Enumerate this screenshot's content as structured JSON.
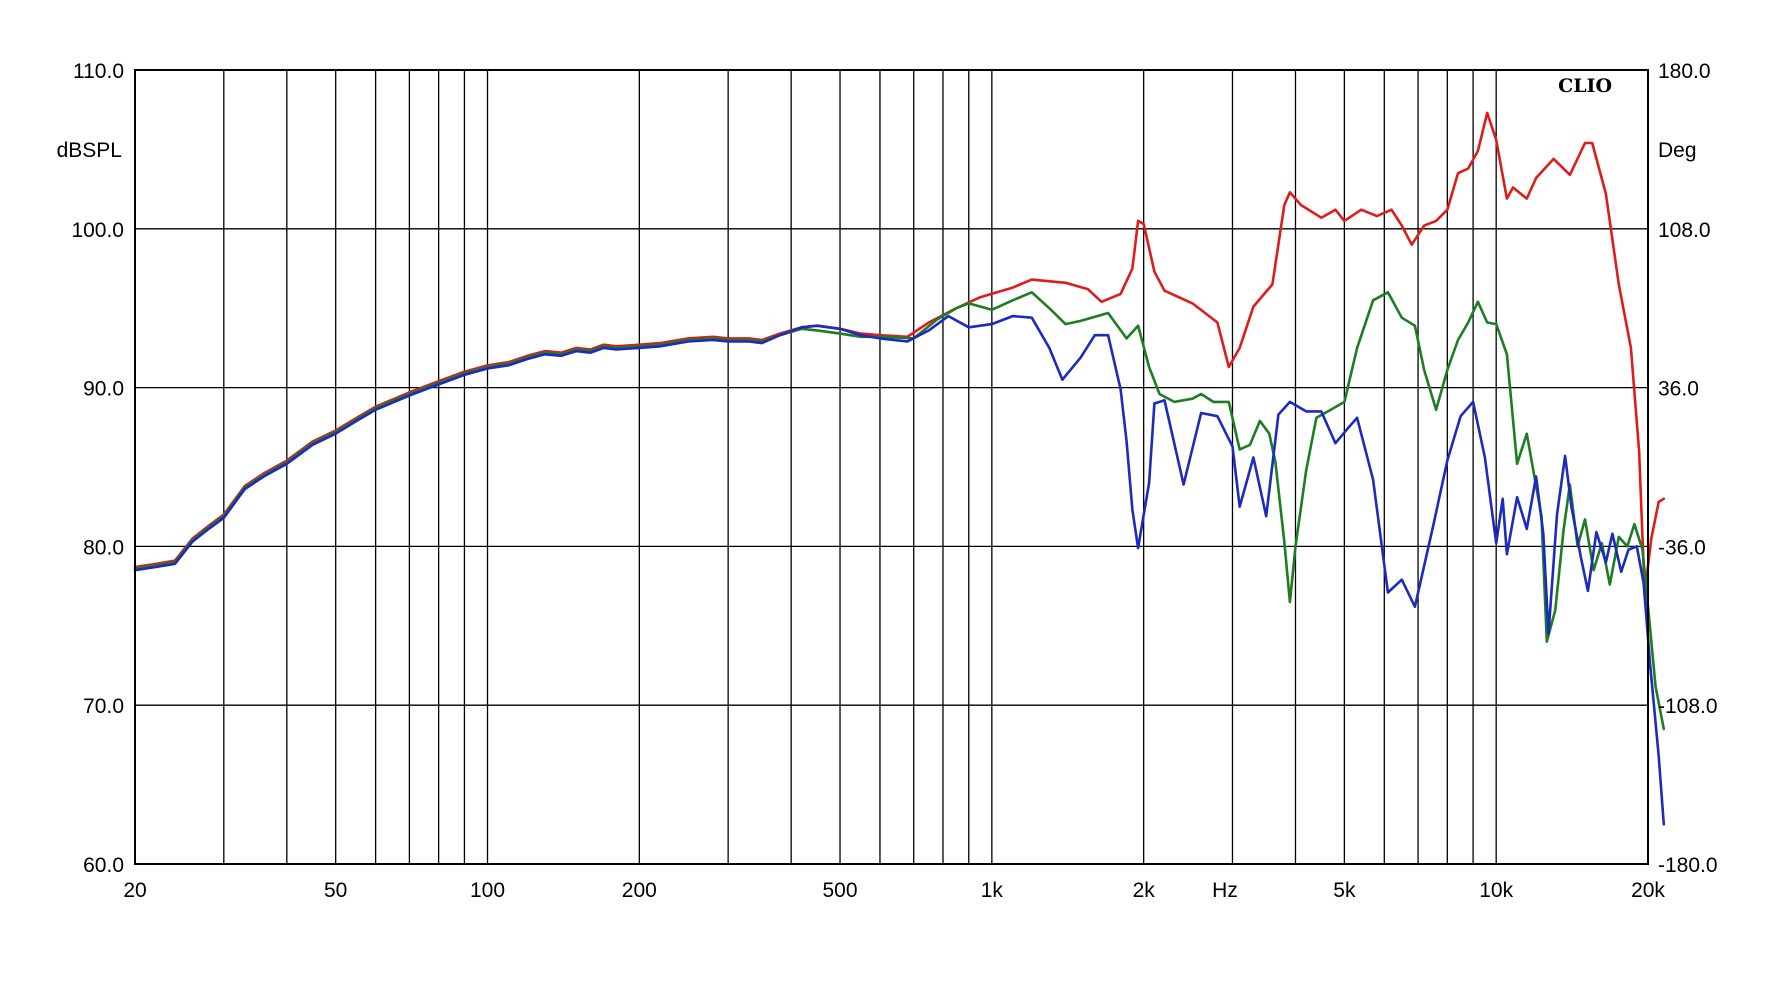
{
  "brand_label": "CLIO",
  "chart_data": {
    "type": "line",
    "xscale": "log",
    "xlim": [
      20,
      20000
    ],
    "ylim": [
      60,
      110
    ],
    "y2lim": [
      -180,
      180
    ],
    "xlabel": "Hz",
    "ylabel": "dBSPL",
    "y2label": "Deg",
    "grid": true,
    "x_ticks": [
      {
        "value": 20,
        "label": "20"
      },
      {
        "value": 50,
        "label": "50"
      },
      {
        "value": 100,
        "label": "100"
      },
      {
        "value": 200,
        "label": "200"
      },
      {
        "value": 500,
        "label": "500"
      },
      {
        "value": 1000,
        "label": "1k"
      },
      {
        "value": 2000,
        "label": "2k"
      },
      {
        "value": 5000,
        "label": "5k"
      },
      {
        "value": 10000,
        "label": "10k"
      },
      {
        "value": 20000,
        "label": "20k"
      }
    ],
    "y_ticks": [
      {
        "value": 110,
        "label": "110.0"
      },
      {
        "value": 100,
        "label": "100.0"
      },
      {
        "value": 90,
        "label": "90.0"
      },
      {
        "value": 80,
        "label": "80.0"
      },
      {
        "value": 70,
        "label": "70.0"
      },
      {
        "value": 60,
        "label": "60.0"
      }
    ],
    "y2_ticks": [
      {
        "value": 180,
        "label": "180.0"
      },
      {
        "value": 108,
        "label": "108.0"
      },
      {
        "value": 36,
        "label": "36.0"
      },
      {
        "value": -36,
        "label": "-36.0"
      },
      {
        "value": -108,
        "label": "-108.0"
      },
      {
        "value": -180,
        "label": "-180.0"
      }
    ],
    "series": [
      {
        "color": "#dd1c1c",
        "points": [
          [
            20,
            78.7
          ],
          [
            22,
            78.9
          ],
          [
            24,
            79.1
          ],
          [
            26,
            80.5
          ],
          [
            28,
            81.3
          ],
          [
            30,
            82
          ],
          [
            33,
            83.8
          ],
          [
            36,
            84.6
          ],
          [
            40,
            85.4
          ],
          [
            45,
            86.6
          ],
          [
            50,
            87.3
          ],
          [
            55,
            88.1
          ],
          [
            60,
            88.8
          ],
          [
            70,
            89.7
          ],
          [
            80,
            90.4
          ],
          [
            90,
            91
          ],
          [
            100,
            91.4
          ],
          [
            110,
            91.6
          ],
          [
            120,
            92
          ],
          [
            130,
            92.3
          ],
          [
            140,
            92.2
          ],
          [
            150,
            92.5
          ],
          [
            160,
            92.4
          ],
          [
            170,
            92.7
          ],
          [
            180,
            92.6
          ],
          [
            200,
            92.7
          ],
          [
            220,
            92.8
          ],
          [
            250,
            93.1
          ],
          [
            280,
            93.2
          ],
          [
            300,
            93.1
          ],
          [
            330,
            93.1
          ],
          [
            350,
            93
          ],
          [
            380,
            93.4
          ],
          [
            420,
            93.8
          ],
          [
            450,
            93.9
          ],
          [
            500,
            93.7
          ],
          [
            550,
            93.4
          ],
          [
            600,
            93.3
          ],
          [
            680,
            93.2
          ],
          [
            750,
            94.1
          ],
          [
            850,
            95
          ],
          [
            950,
            95.7
          ],
          [
            1100,
            96.3
          ],
          [
            1200,
            96.8
          ],
          [
            1400,
            96.6
          ],
          [
            1550,
            96.2
          ],
          [
            1650,
            95.4
          ],
          [
            1800,
            95.9
          ],
          [
            1900,
            97.5
          ],
          [
            1950,
            100.5
          ],
          [
            2000,
            100.3
          ],
          [
            2100,
            97.3
          ],
          [
            2200,
            96.1
          ],
          [
            2500,
            95.3
          ],
          [
            2800,
            94.1
          ],
          [
            2950,
            91.3
          ],
          [
            3100,
            92.5
          ],
          [
            3300,
            95.1
          ],
          [
            3600,
            96.5
          ],
          [
            3800,
            101.5
          ],
          [
            3900,
            102.3
          ],
          [
            4100,
            101.5
          ],
          [
            4500,
            100.7
          ],
          [
            4800,
            101.2
          ],
          [
            5000,
            100.5
          ],
          [
            5400,
            101.2
          ],
          [
            5800,
            100.8
          ],
          [
            6200,
            101.2
          ],
          [
            6500,
            100.2
          ],
          [
            6800,
            99
          ],
          [
            7200,
            100.2
          ],
          [
            7600,
            100.5
          ],
          [
            8000,
            101.2
          ],
          [
            8400,
            103.5
          ],
          [
            8800,
            103.8
          ],
          [
            9200,
            104.9
          ],
          [
            9600,
            107.3
          ],
          [
            10000,
            105.6
          ],
          [
            10500,
            101.9
          ],
          [
            10800,
            102.6
          ],
          [
            11500,
            101.9
          ],
          [
            12000,
            103.2
          ],
          [
            13000,
            104.4
          ],
          [
            14000,
            103.4
          ],
          [
            15000,
            105.4
          ],
          [
            15500,
            105.4
          ],
          [
            16500,
            102.2
          ],
          [
            17500,
            96.5
          ],
          [
            18500,
            92.5
          ],
          [
            19200,
            86
          ],
          [
            19700,
            77
          ],
          [
            20300,
            80.5
          ],
          [
            21000,
            82.8
          ],
          [
            21500,
            83
          ]
        ]
      },
      {
        "color": "#1e7c22",
        "points": [
          [
            20,
            78.6
          ],
          [
            22,
            78.8
          ],
          [
            24,
            79
          ],
          [
            26,
            80.4
          ],
          [
            28,
            81.2
          ],
          [
            30,
            81.9
          ],
          [
            33,
            83.7
          ],
          [
            36,
            84.5
          ],
          [
            40,
            85.3
          ],
          [
            45,
            86.5
          ],
          [
            50,
            87.2
          ],
          [
            55,
            88
          ],
          [
            60,
            88.7
          ],
          [
            70,
            89.6
          ],
          [
            80,
            90.3
          ],
          [
            90,
            90.9
          ],
          [
            100,
            91.3
          ],
          [
            110,
            91.5
          ],
          [
            120,
            91.9
          ],
          [
            130,
            92.2
          ],
          [
            140,
            92.1
          ],
          [
            150,
            92.4
          ],
          [
            160,
            92.3
          ],
          [
            170,
            92.6
          ],
          [
            180,
            92.5
          ],
          [
            200,
            92.6
          ],
          [
            220,
            92.7
          ],
          [
            250,
            93
          ],
          [
            280,
            93.1
          ],
          [
            300,
            93
          ],
          [
            330,
            93
          ],
          [
            350,
            92.9
          ],
          [
            380,
            93.3
          ],
          [
            420,
            93.7
          ],
          [
            450,
            93.6
          ],
          [
            500,
            93.4
          ],
          [
            550,
            93.2
          ],
          [
            600,
            93.2
          ],
          [
            700,
            93.1
          ],
          [
            780,
            94.3
          ],
          [
            850,
            95
          ],
          [
            900,
            95.3
          ],
          [
            1000,
            94.9
          ],
          [
            1100,
            95.5
          ],
          [
            1200,
            96
          ],
          [
            1300,
            95
          ],
          [
            1400,
            94
          ],
          [
            1500,
            94.2
          ],
          [
            1700,
            94.7
          ],
          [
            1850,
            93.1
          ],
          [
            1950,
            93.9
          ],
          [
            2050,
            91.3
          ],
          [
            2150,
            89.6
          ],
          [
            2300,
            89.1
          ],
          [
            2500,
            89.3
          ],
          [
            2600,
            89.6
          ],
          [
            2750,
            89.1
          ],
          [
            2950,
            89.1
          ],
          [
            3100,
            86.1
          ],
          [
            3250,
            86.4
          ],
          [
            3400,
            87.9
          ],
          [
            3550,
            87.1
          ],
          [
            3650,
            85.3
          ],
          [
            3800,
            80.3
          ],
          [
            3900,
            76.5
          ],
          [
            4000,
            80
          ],
          [
            4200,
            84.8
          ],
          [
            4400,
            88.1
          ],
          [
            4700,
            88.6
          ],
          [
            5000,
            89.1
          ],
          [
            5300,
            92.5
          ],
          [
            5700,
            95.5
          ],
          [
            6100,
            96
          ],
          [
            6500,
            94.4
          ],
          [
            6900,
            93.9
          ],
          [
            7200,
            91.1
          ],
          [
            7600,
            88.6
          ],
          [
            8000,
            91.1
          ],
          [
            8400,
            93
          ],
          [
            8800,
            94.1
          ],
          [
            9200,
            95.4
          ],
          [
            9600,
            94.1
          ],
          [
            10000,
            94
          ],
          [
            10500,
            92.1
          ],
          [
            11000,
            85.2
          ],
          [
            11500,
            87.1
          ],
          [
            11800,
            85.1
          ],
          [
            12300,
            81.9
          ],
          [
            12600,
            74
          ],
          [
            13100,
            76
          ],
          [
            13600,
            81
          ],
          [
            14000,
            83.9
          ],
          [
            14500,
            80
          ],
          [
            15000,
            81.7
          ],
          [
            15600,
            78.5
          ],
          [
            16200,
            80.2
          ],
          [
            16800,
            77.6
          ],
          [
            17500,
            80.6
          ],
          [
            18200,
            80
          ],
          [
            18800,
            81.4
          ],
          [
            19500,
            79.8
          ],
          [
            20100,
            75.5
          ],
          [
            20700,
            71.2
          ],
          [
            21500,
            68.5
          ]
        ]
      },
      {
        "color": "#1c2bbf",
        "points": [
          [
            20,
            78.5
          ],
          [
            22,
            78.7
          ],
          [
            24,
            78.9
          ],
          [
            26,
            80.3
          ],
          [
            28,
            81.1
          ],
          [
            30,
            81.8
          ],
          [
            33,
            83.6
          ],
          [
            36,
            84.4
          ],
          [
            40,
            85.2
          ],
          [
            45,
            86.4
          ],
          [
            50,
            87.1
          ],
          [
            55,
            87.9
          ],
          [
            60,
            88.6
          ],
          [
            70,
            89.5
          ],
          [
            80,
            90.2
          ],
          [
            90,
            90.8
          ],
          [
            100,
            91.2
          ],
          [
            110,
            91.4
          ],
          [
            120,
            91.8
          ],
          [
            130,
            92.1
          ],
          [
            140,
            92
          ],
          [
            150,
            92.3
          ],
          [
            160,
            92.2
          ],
          [
            170,
            92.5
          ],
          [
            180,
            92.4
          ],
          [
            200,
            92.5
          ],
          [
            220,
            92.6
          ],
          [
            250,
            92.9
          ],
          [
            280,
            93
          ],
          [
            300,
            92.9
          ],
          [
            330,
            92.9
          ],
          [
            350,
            92.8
          ],
          [
            380,
            93.3
          ],
          [
            420,
            93.8
          ],
          [
            450,
            93.9
          ],
          [
            500,
            93.7
          ],
          [
            550,
            93.3
          ],
          [
            600,
            93.1
          ],
          [
            680,
            92.9
          ],
          [
            750,
            93.6
          ],
          [
            820,
            94.5
          ],
          [
            900,
            93.8
          ],
          [
            1000,
            94
          ],
          [
            1100,
            94.5
          ],
          [
            1200,
            94.4
          ],
          [
            1300,
            92.5
          ],
          [
            1380,
            90.5
          ],
          [
            1500,
            91.9
          ],
          [
            1600,
            93.3
          ],
          [
            1700,
            93.3
          ],
          [
            1800,
            89.9
          ],
          [
            1850,
            86.6
          ],
          [
            1900,
            82.3
          ],
          [
            1950,
            79.9
          ],
          [
            2050,
            84
          ],
          [
            2100,
            89
          ],
          [
            2200,
            89.2
          ],
          [
            2400,
            83.9
          ],
          [
            2600,
            88.4
          ],
          [
            2800,
            88.2
          ],
          [
            3000,
            86.3
          ],
          [
            3100,
            82.5
          ],
          [
            3300,
            85.6
          ],
          [
            3500,
            81.9
          ],
          [
            3700,
            88.3
          ],
          [
            3900,
            89.1
          ],
          [
            4200,
            88.5
          ],
          [
            4500,
            88.5
          ],
          [
            4800,
            86.5
          ],
          [
            5100,
            87.5
          ],
          [
            5300,
            88.1
          ],
          [
            5700,
            84.2
          ],
          [
            6100,
            77.1
          ],
          [
            6500,
            77.9
          ],
          [
            6900,
            76.2
          ],
          [
            7500,
            81.3
          ],
          [
            8000,
            85.4
          ],
          [
            8500,
            88.2
          ],
          [
            9000,
            89.1
          ],
          [
            9500,
            85.6
          ],
          [
            10000,
            80.2
          ],
          [
            10300,
            83
          ],
          [
            10500,
            79.5
          ],
          [
            11000,
            83.1
          ],
          [
            11500,
            81.1
          ],
          [
            12000,
            84.4
          ],
          [
            12400,
            80.8
          ],
          [
            12700,
            74.5
          ],
          [
            13200,
            82
          ],
          [
            13700,
            85.7
          ],
          [
            14100,
            82.5
          ],
          [
            14700,
            79.4
          ],
          [
            15200,
            77.2
          ],
          [
            15800,
            80.9
          ],
          [
            16500,
            79
          ],
          [
            17000,
            80.8
          ],
          [
            17700,
            78.4
          ],
          [
            18300,
            79.8
          ],
          [
            19000,
            80
          ],
          [
            19600,
            77.7
          ],
          [
            20200,
            72.5
          ],
          [
            21000,
            66.8
          ],
          [
            21500,
            62.5
          ]
        ]
      }
    ]
  }
}
